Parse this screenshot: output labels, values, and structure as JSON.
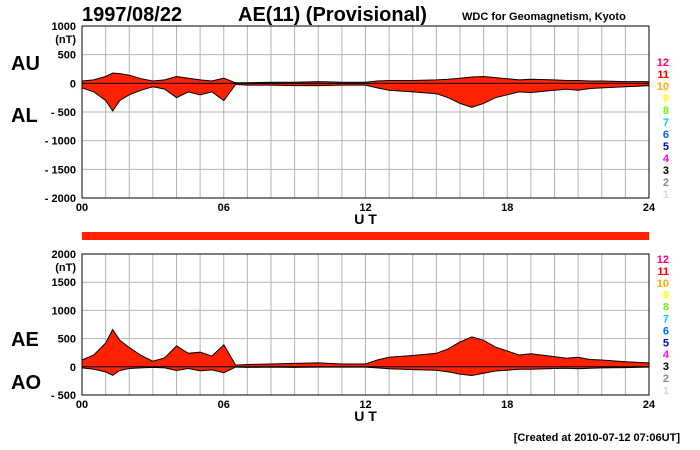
{
  "header": {
    "date": "1997/08/22",
    "title": "AE(11) (Provisional)",
    "source": "WDC for Geomagnetism, Kyoto",
    "created": "[Created at 2010-07-12 07:06UT]"
  },
  "colors": {
    "fill": "#ff2200",
    "grid": "#b4b4b4",
    "bar": "#ff2200",
    "scale": [
      "#d8d8d8",
      "#888888",
      "#000000",
      "#ff00ff",
      "#0000cc",
      "#0066ff",
      "#00ccff",
      "#66ff00",
      "#ffff00",
      "#ffaa00",
      "#ff0000",
      "#ff0077"
    ]
  },
  "scale_labels": [
    "1",
    "2",
    "3",
    "4",
    "5",
    "6",
    "7",
    "8",
    "9",
    "10",
    "11",
    "12"
  ],
  "chart_data": [
    {
      "type": "area",
      "name": "AU/AL",
      "labels": {
        "upper": "AU",
        "lower": "AL",
        "unit": "(nT)",
        "xlabel": "U T"
      },
      "xlim": [
        0,
        24
      ],
      "ylim": [
        -2000,
        1000
      ],
      "x_ticks": [
        0,
        6,
        12,
        18,
        24
      ],
      "x_tick_labels": [
        "00",
        "06",
        "12",
        "18",
        "24"
      ],
      "y_ticks": [
        1000,
        500,
        0,
        -500,
        -1000,
        -1500,
        -2000
      ],
      "y_tick_labels": [
        "1000",
        "500",
        "0",
        "- 500",
        "- 1000",
        "- 1500",
        "- 2000"
      ],
      "x": [
        0,
        0.5,
        1,
        1.3,
        1.6,
        2,
        2.5,
        3,
        3.5,
        4,
        4.5,
        5,
        5.5,
        6,
        6.5,
        7,
        8,
        9,
        10,
        11,
        12,
        12.5,
        13,
        14,
        15,
        15.5,
        16,
        16.5,
        17,
        17.5,
        18,
        18.5,
        19,
        20,
        20.5,
        21,
        21.5,
        22,
        23,
        24
      ],
      "series": [
        {
          "name": "AU",
          "values": [
            40,
            60,
            120,
            180,
            170,
            140,
            80,
            40,
            60,
            120,
            90,
            60,
            40,
            90,
            10,
            10,
            20,
            20,
            30,
            20,
            20,
            40,
            50,
            50,
            60,
            70,
            90,
            110,
            120,
            100,
            80,
            60,
            70,
            60,
            50,
            50,
            40,
            40,
            30,
            30
          ]
        },
        {
          "name": "AL",
          "values": [
            -80,
            -150,
            -300,
            -480,
            -300,
            -200,
            -120,
            -60,
            -100,
            -250,
            -150,
            -200,
            -150,
            -300,
            -20,
            -30,
            -30,
            -40,
            -40,
            -30,
            -30,
            -80,
            -120,
            -150,
            -180,
            -250,
            -350,
            -420,
            -350,
            -250,
            -200,
            -150,
            -160,
            -120,
            -100,
            -120,
            -90,
            -80,
            -60,
            -40
          ]
        }
      ]
    },
    {
      "type": "area",
      "name": "AE/AO",
      "labels": {
        "upper": "AE",
        "lower": "AO",
        "unit": "(nT)",
        "xlabel": "U T"
      },
      "xlim": [
        0,
        24
      ],
      "ylim": [
        -500,
        2000
      ],
      "x_ticks": [
        0,
        6,
        12,
        18,
        24
      ],
      "x_tick_labels": [
        "00",
        "06",
        "12",
        "18",
        "24"
      ],
      "y_ticks": [
        2000,
        1500,
        1000,
        500,
        0,
        -500
      ],
      "y_tick_labels": [
        "2000",
        "1500",
        "1000",
        "500",
        "0",
        "- 500"
      ],
      "x": [
        0,
        0.5,
        1,
        1.3,
        1.6,
        2,
        2.5,
        3,
        3.5,
        4,
        4.5,
        5,
        5.5,
        6,
        6.5,
        7,
        8,
        9,
        10,
        11,
        12,
        12.5,
        13,
        14,
        15,
        15.5,
        16,
        16.5,
        17,
        17.5,
        18,
        18.5,
        19,
        20,
        20.5,
        21,
        21.5,
        22,
        23,
        24
      ],
      "series": [
        {
          "name": "AE",
          "values": [
            120,
            210,
            420,
            660,
            470,
            340,
            200,
            100,
            160,
            370,
            240,
            260,
            190,
            390,
            30,
            40,
            50,
            60,
            70,
            50,
            50,
            120,
            170,
            200,
            240,
            320,
            440,
            530,
            470,
            350,
            280,
            210,
            230,
            180,
            150,
            170,
            130,
            120,
            90,
            70
          ]
        },
        {
          "name": "AO",
          "values": [
            -20,
            -45,
            -90,
            -150,
            -65,
            -30,
            -20,
            -10,
            -20,
            -65,
            -30,
            -70,
            -55,
            -105,
            -5,
            -10,
            -5,
            -10,
            -5,
            -5,
            -5,
            -20,
            -35,
            -50,
            -60,
            -90,
            -130,
            -155,
            -115,
            -75,
            -60,
            -45,
            -45,
            -30,
            -25,
            -35,
            -25,
            -20,
            -15,
            -5
          ]
        }
      ]
    }
  ]
}
